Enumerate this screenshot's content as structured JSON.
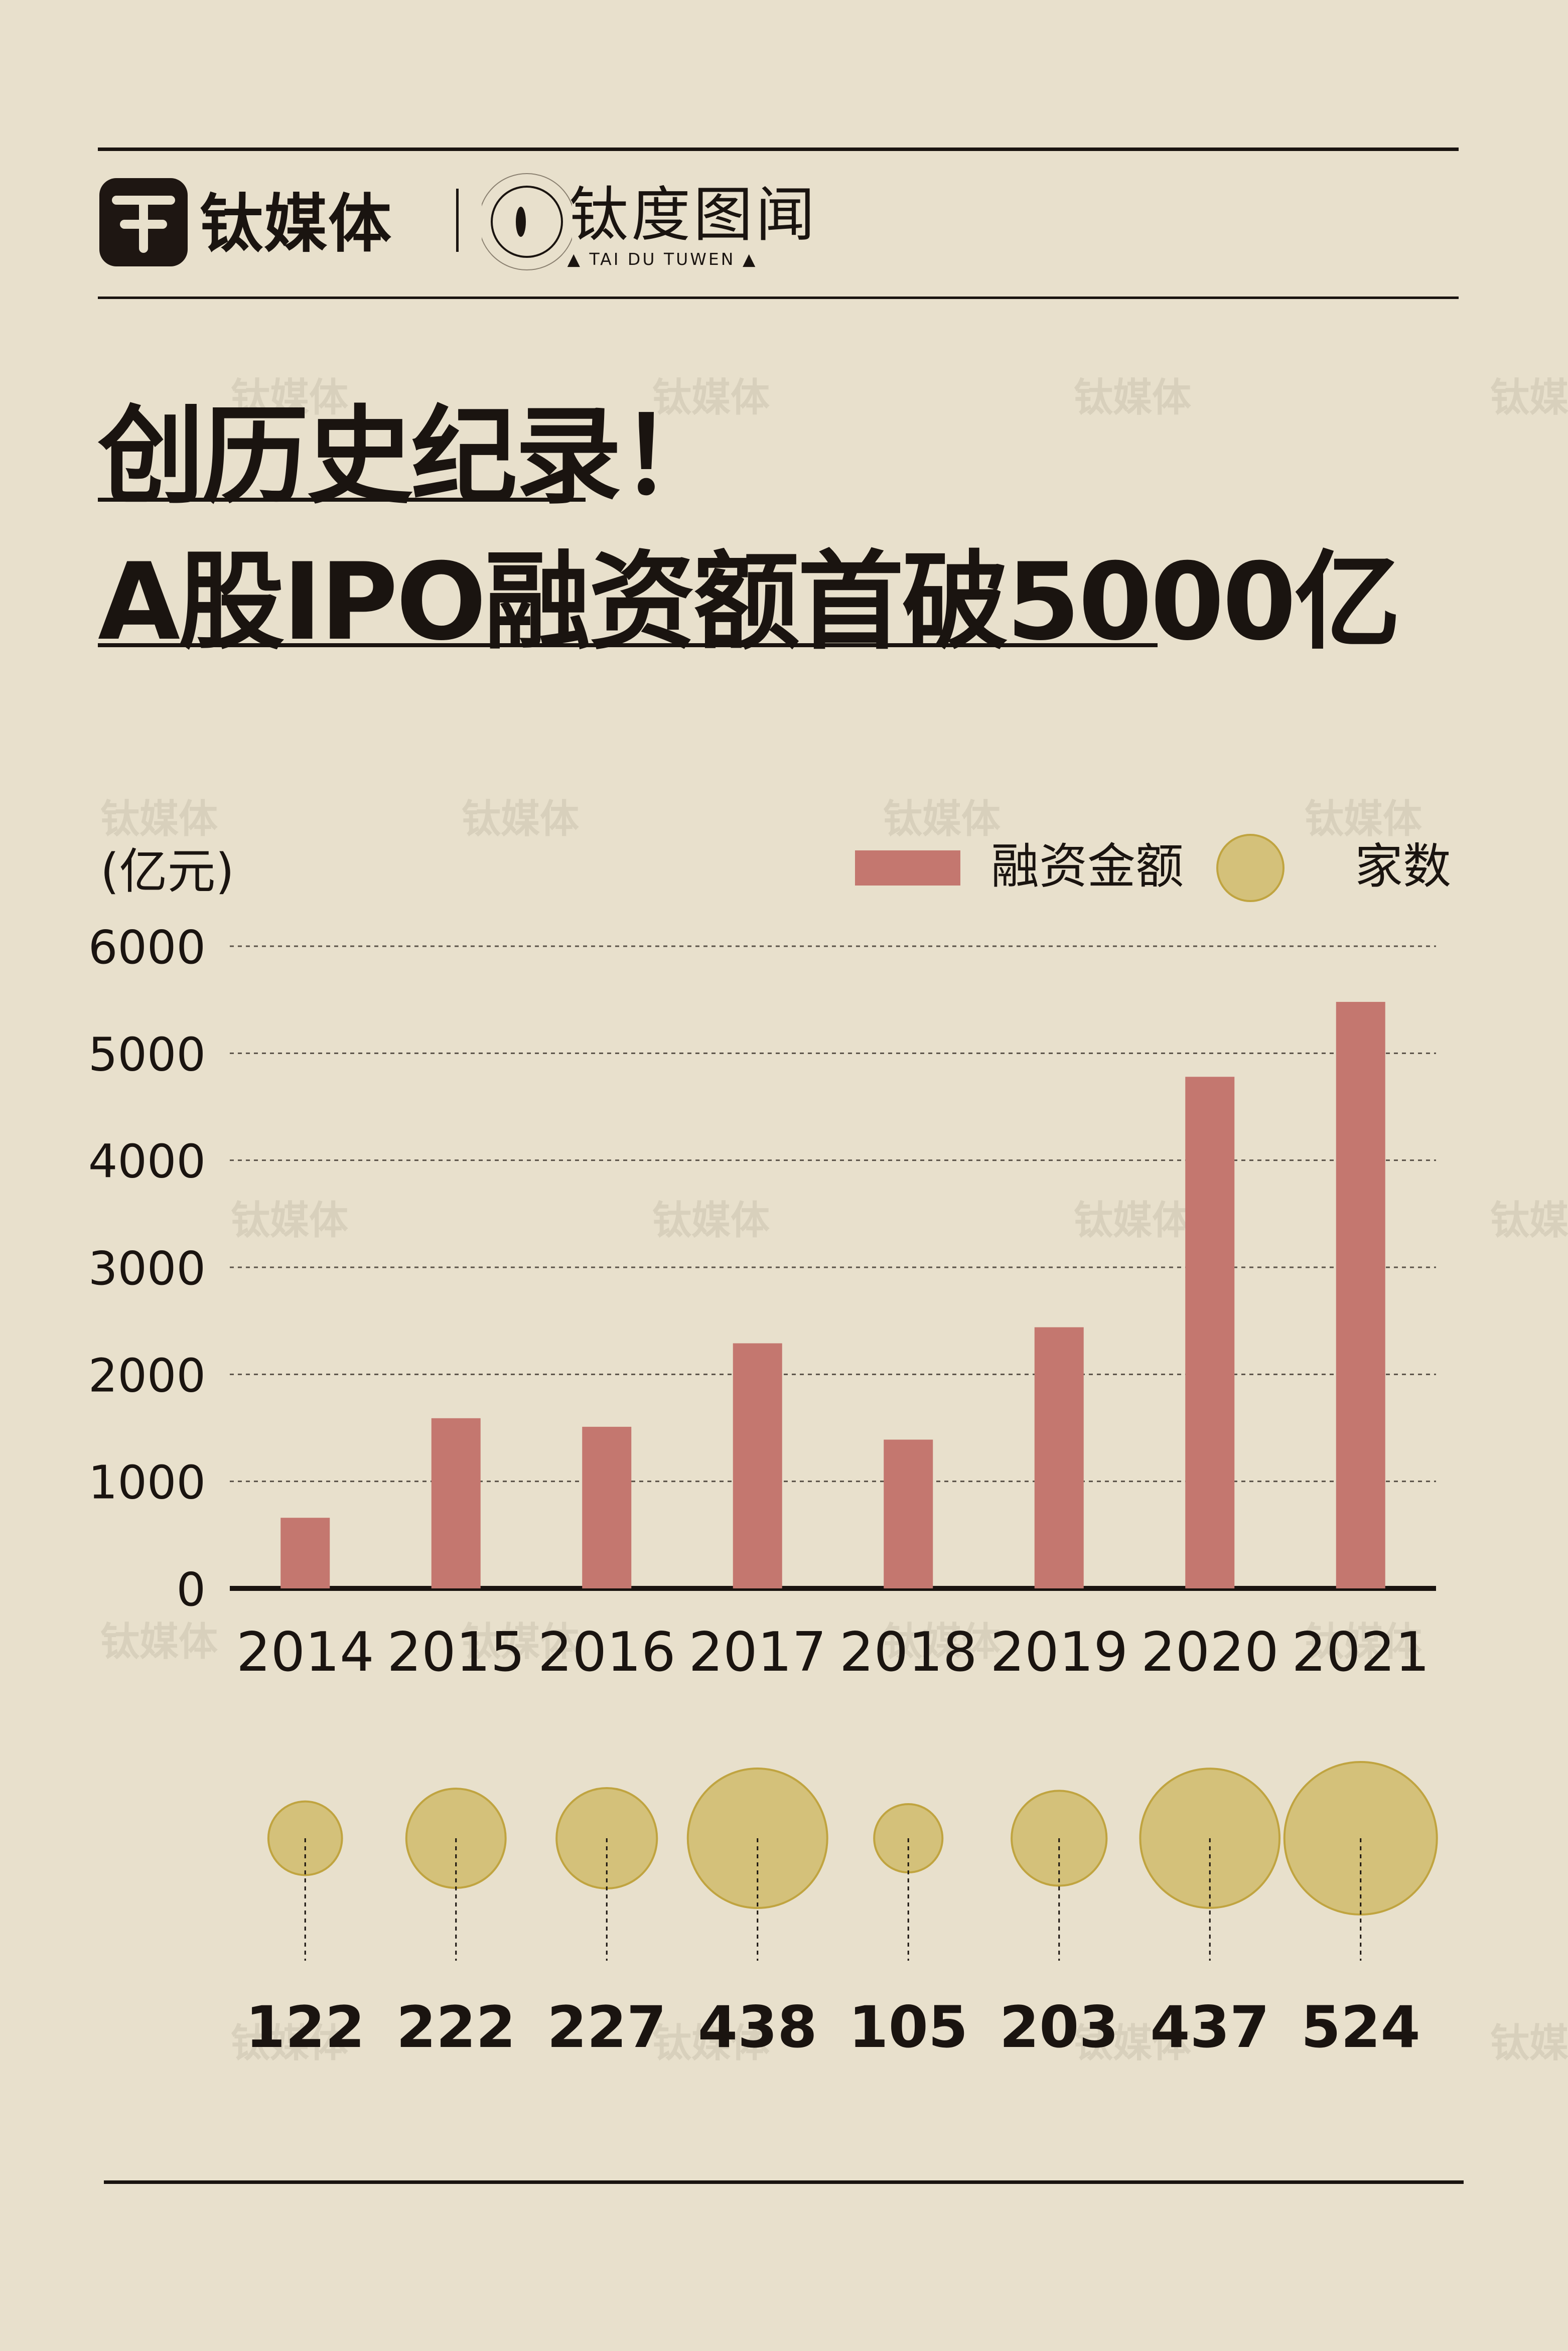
{
  "header": {
    "logo_primary": "钛媒体",
    "logo_secondary": "钛度图闻",
    "logo_secondary_en": "TAI DU TUWEN",
    "watermark": "钛媒体"
  },
  "title": {
    "line1": "创历史纪录！",
    "line2": "A股IPO融资额首破5000亿"
  },
  "chart_data": {
    "type": "bar",
    "unit_label": "(亿元)",
    "categories": [
      "2014",
      "2015",
      "2016",
      "2017",
      "2018",
      "2019",
      "2020",
      "2021"
    ],
    "series": [
      {
        "name": "融资金额",
        "color": "#c4776f",
        "values": [
          660,
          1590,
          1510,
          2290,
          1390,
          2440,
          4780,
          5480
        ]
      },
      {
        "name": "家数",
        "color": "#d4c17a",
        "values": [
          122,
          222,
          227,
          438,
          105,
          203,
          437,
          524
        ]
      }
    ],
    "ylim": [
      0,
      6000
    ],
    "yticks": [
      "0",
      "1000",
      "2000",
      "3000",
      "4000",
      "5000",
      "6000"
    ],
    "grid": true,
    "legend_position": "top-right"
  }
}
